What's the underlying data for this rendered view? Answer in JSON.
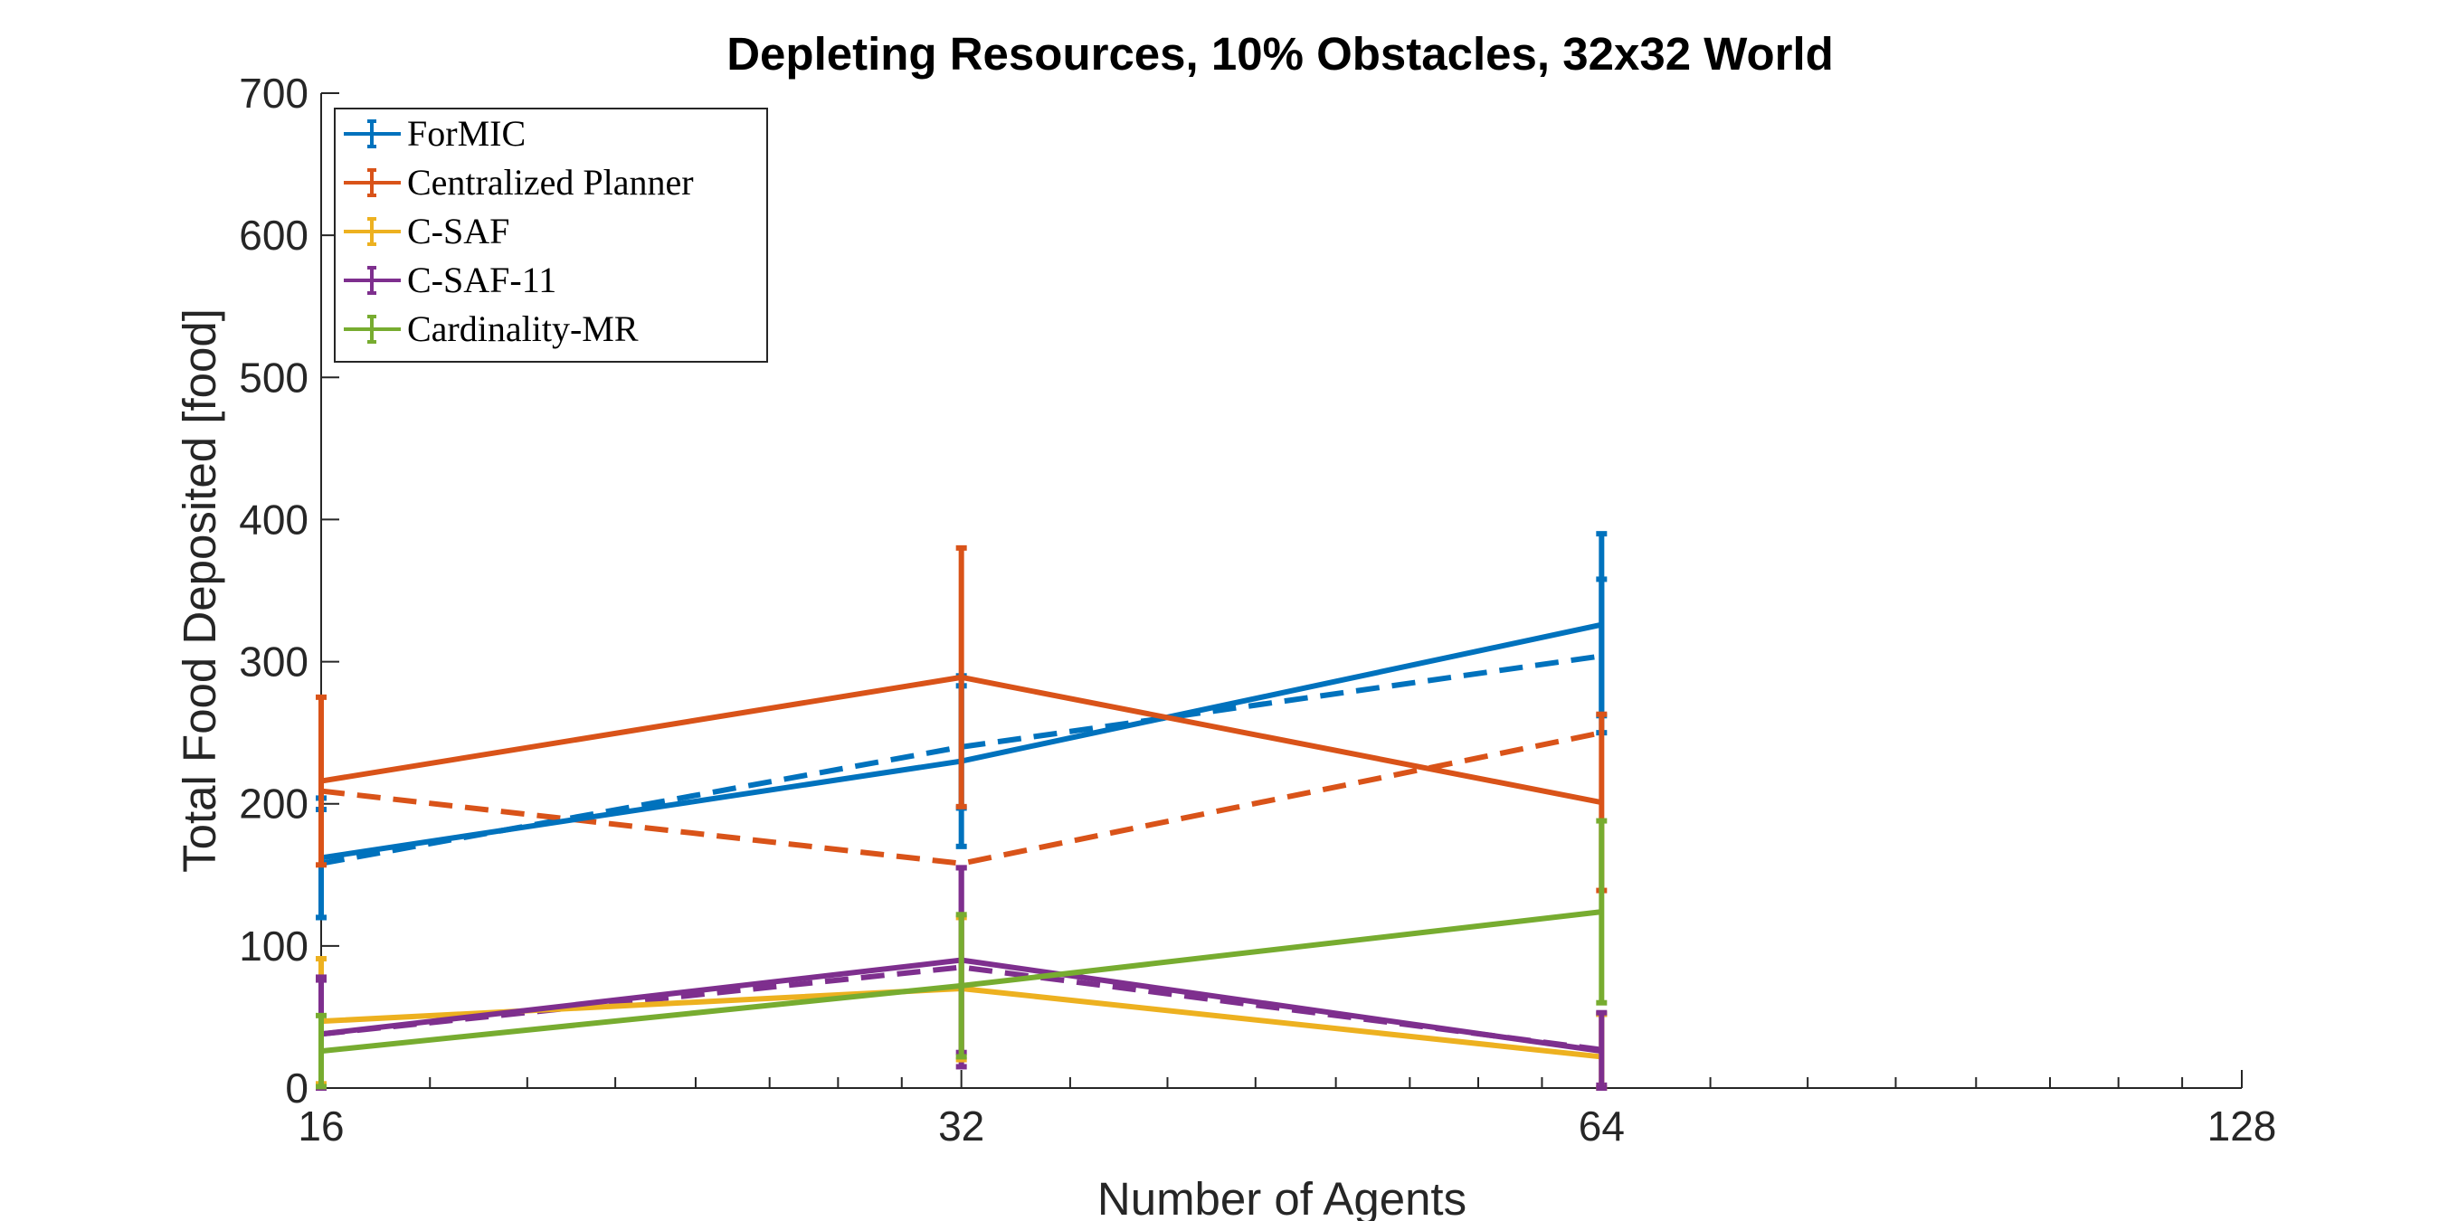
{
  "chart_data": {
    "type": "line",
    "title": "Depleting Resources, 10% Obstacles, 32x32 World",
    "xlabel": "Number of Agents",
    "ylabel": "Total Food Deposited [food]",
    "x_scale": "log2",
    "xlim": [
      16,
      128
    ],
    "ylim": [
      0,
      700
    ],
    "x_ticks": [
      16,
      32,
      64,
      128
    ],
    "y_ticks": [
      0,
      100,
      200,
      300,
      400,
      500,
      600,
      700
    ],
    "grid": false,
    "legend_position": "top-left",
    "x": [
      16,
      32,
      64
    ],
    "series": [
      {
        "name": "ForMIC",
        "color": "#0072BD",
        "values": [
          162,
          230,
          326
        ],
        "error": [
          42,
          60,
          64
        ]
      },
      {
        "name": "Centralized Planner",
        "color": "#D95319",
        "values": [
          216,
          289,
          201
        ],
        "error": [
          59,
          91,
          62
        ]
      },
      {
        "name": "C-SAF",
        "color": "#EDB120",
        "values": [
          47,
          70,
          22
        ],
        "error": [
          44,
          50,
          30
        ]
      },
      {
        "name": "C-SAF-11",
        "color": "#7E2F8E",
        "values": [
          38,
          90,
          26
        ],
        "error": [
          40,
          65,
          27
        ]
      },
      {
        "name": "Cardinality-MR",
        "color": "#77AC30",
        "values": [
          26,
          72,
          124
        ],
        "error": [
          25,
          50,
          64
        ]
      }
    ],
    "dashed_series": [
      {
        "color": "#0072BD",
        "values": [
          158,
          240,
          304
        ],
        "error": [
          38,
          43,
          54
        ]
      },
      {
        "color": "#D95319",
        "values": [
          209,
          158,
          250
        ],
        "error": [
          0,
          0,
          0
        ]
      },
      {
        "color": "#7E2F8E",
        "values": [
          38,
          85,
          27
        ],
        "error": [
          38,
          70,
          25
        ]
      }
    ]
  }
}
